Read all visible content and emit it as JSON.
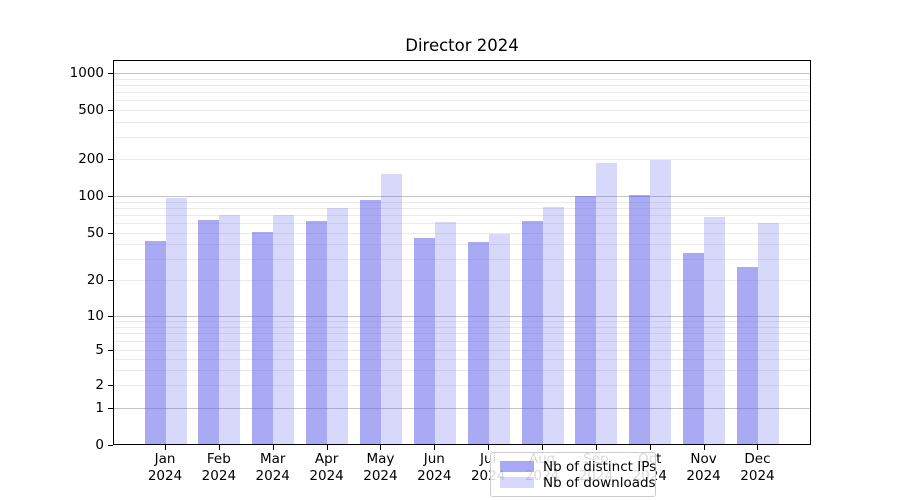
{
  "title": "Director 2024",
  "chart_data": {
    "type": "bar",
    "title": "Director 2024",
    "categories": [
      "Jan 2024",
      "Feb 2024",
      "Mar 2024",
      "Apr 2024",
      "May 2024",
      "Jun 2024",
      "Jul 2024",
      "Aug 2024",
      "Sep 2024",
      "Oct 2024",
      "Nov 2024",
      "Dec 2024"
    ],
    "series": [
      {
        "name": "Nb of distinct IPs",
        "color": "rgba(100,100,235,0.55)",
        "values": [
          43,
          64,
          51,
          63,
          92,
          45,
          42,
          63,
          100,
          102,
          34,
          26
        ]
      },
      {
        "name": "Nb of downloads",
        "color": "rgba(100,100,235,0.25)",
        "values": [
          97,
          70,
          70,
          80,
          150,
          61,
          49,
          81,
          187,
          197,
          67,
          60
        ]
      }
    ],
    "xlabel": "",
    "ylabel": "",
    "yscale": "symlog",
    "y_ticks": [
      0,
      1,
      2,
      5,
      10,
      20,
      50,
      100,
      200,
      500,
      1000
    ],
    "ylim": [
      0,
      1280
    ],
    "grid": "horizontal major + log minor",
    "legend_position": "lower center inside plot"
  },
  "colors": {
    "bar_base": "#6464eb",
    "major_grid": "#c4c4c4",
    "minor_grid": "#ebebeb",
    "axis": "#000000",
    "background": "#ffffff"
  }
}
